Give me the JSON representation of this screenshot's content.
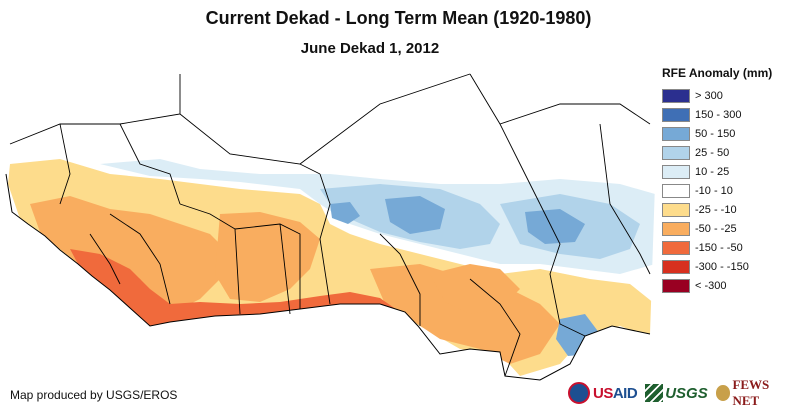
{
  "title": "Current Dekad - Long Term Mean (1920-1980)",
  "subtitle": "June Dekad 1, 2012",
  "legend": {
    "title": "RFE Anomaly (mm)",
    "items": [
      {
        "label": "> 300",
        "color": "#2b2f8f"
      },
      {
        "label": "150 - 300",
        "color": "#3f6fb5"
      },
      {
        "label": "50 - 150",
        "color": "#76a9d6"
      },
      {
        "label": "25 - 50",
        "color": "#b1d3ea"
      },
      {
        "label": "10 - 25",
        "color": "#dcedf6"
      },
      {
        "label": "-10 - 10",
        "color": "#ffffff"
      },
      {
        "label": "-25 - -10",
        "color": "#fddc8c"
      },
      {
        "label": "-50 - -25",
        "color": "#f9ad5f"
      },
      {
        "label": "-150 - -50",
        "color": "#f06a3c"
      },
      {
        "label": "-300 - -150",
        "color": "#d7301f"
      },
      {
        "label": "< -300",
        "color": "#990022"
      }
    ]
  },
  "credit": "Map produced by USGS/EROS",
  "logos": {
    "usaid": "USAID",
    "usgs": "USGS",
    "fews": "FEWS NET"
  },
  "colors": {
    "border": "#000000",
    "dry_strong": "#f06a3c",
    "dry": "#f9ad5f",
    "dry_light": "#fddc8c",
    "wet_light": "#dcedf6",
    "wet": "#b1d3ea",
    "wet_strong": "#76a9d6"
  }
}
